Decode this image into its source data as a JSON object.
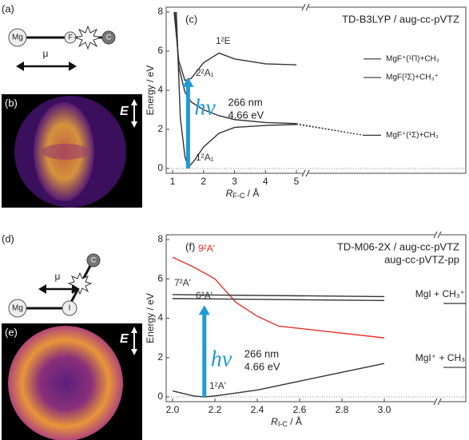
{
  "panels": {
    "a": "(a)",
    "b": "(b)",
    "d": "(d)",
    "e": "(e)"
  },
  "diagram_a": {
    "atoms": [
      "Mg",
      "F",
      "C"
    ],
    "mu": "μ"
  },
  "image_b": {
    "field": "E"
  },
  "diagram_d": {
    "atoms": [
      "C",
      "Mg",
      "I"
    ],
    "mu": "μ"
  },
  "image_e": {
    "field": "E"
  },
  "chart_data": [
    {
      "type": "line",
      "panel": "(c)",
      "title": "TD-B3LYP / aug-cc-pVTZ",
      "xlabel": {
        "symbol": "R",
        "subscript": "F-C",
        "unit": " / Å"
      },
      "ylabel": "Energy / eV",
      "xlim": [
        1,
        5
      ],
      "ylim": [
        0,
        8
      ],
      "xticks": [
        1,
        2,
        3,
        4,
        5
      ],
      "yticks": [
        0,
        2,
        4,
        6,
        8
      ],
      "series": [
        {
          "name": "1²E",
          "color": "#333333",
          "x": [
            1.05,
            1.2,
            1.4,
            1.6,
            2,
            2.5,
            3,
            4,
            5
          ],
          "values": [
            8,
            5.5,
            4.5,
            4.6,
            5.4,
            5.9,
            5.6,
            5.35,
            5.3
          ]
        },
        {
          "name": "2²A₁",
          "color": "#333333",
          "x": [
            1.08,
            1.2,
            1.4,
            1.6,
            2,
            2.5,
            3,
            4,
            5
          ],
          "values": [
            8,
            5.2,
            3.9,
            3.4,
            3.0,
            2.7,
            2.5,
            2.35,
            2.3
          ]
        },
        {
          "name": "1²A₁",
          "color": "#333333",
          "x": [
            1.12,
            1.25,
            1.4,
            1.5,
            1.7,
            2,
            2.5,
            3,
            4,
            5
          ],
          "values": [
            8,
            2.6,
            0.6,
            0.05,
            0.4,
            1.1,
            1.8,
            2.1,
            2.2,
            2.25
          ]
        }
      ],
      "asymptotes": [
        {
          "label": "MgF⁺(¹Π)+CH₃",
          "value": 5.6
        },
        {
          "label": "MgF(²Σ)+CH₃⁺",
          "value": 4.65
        },
        {
          "label": "MgF⁺(¹Σ)+CH₃",
          "value": 1.7
        }
      ],
      "excitation": {
        "x": 1.5,
        "energy": 4.66,
        "label": "hν",
        "wavelength": "266 nm",
        "energy_label": "4.66 eV"
      }
    },
    {
      "type": "line",
      "panel": "(f)",
      "title": "TD-M06-2X / aug-cc-pVTZ",
      "subtitle": "aug-cc-pVTZ-pp",
      "xlabel": {
        "symbol": "R",
        "subscript": "I-C",
        "unit": " / Å"
      },
      "ylabel": "Energy / eV",
      "xlim": [
        2,
        3
      ],
      "ylim": [
        0,
        8
      ],
      "xticks": [
        {
          "value": 2,
          "label": "2.0"
        },
        2.2,
        2.4,
        2.6,
        2.8,
        {
          "value": 3,
          "label": "3.0"
        }
      ],
      "yticks": [
        0,
        2,
        4,
        6,
        8
      ],
      "series": [
        {
          "name": "9²A'",
          "color": "#e8312a",
          "x": [
            2.0,
            2.1,
            2.2,
            2.3,
            2.4,
            2.5,
            3.0
          ],
          "values": [
            7.1,
            6.6,
            6.0,
            4.8,
            4.1,
            3.6,
            3.0
          ]
        },
        {
          "name": "7²A'",
          "color": "#333333",
          "x": [
            2.0,
            3.0
          ],
          "values": [
            5.2,
            5.1
          ]
        },
        {
          "name": "6²A'",
          "color": "#333333",
          "x": [
            2.0,
            3.0
          ],
          "values": [
            5.0,
            4.9
          ]
        },
        {
          "name": "1²A'",
          "color": "#333333",
          "x": [
            2.0,
            2.1,
            2.15,
            2.2,
            2.4,
            2.6,
            2.8,
            3.0
          ],
          "values": [
            0.3,
            0.05,
            0,
            0.05,
            0.35,
            0.8,
            1.25,
            1.7
          ]
        }
      ],
      "asymptotes": [
        {
          "label": "MgI + CH₃⁺",
          "value": 4.75
        },
        {
          "label": "MgI⁺ + CH₃",
          "value": 1.5
        }
      ],
      "excitation": {
        "x": 2.15,
        "energy": 4.66,
        "label": "hν",
        "wavelength": "266 nm",
        "energy_label": "4.66 eV"
      }
    }
  ]
}
